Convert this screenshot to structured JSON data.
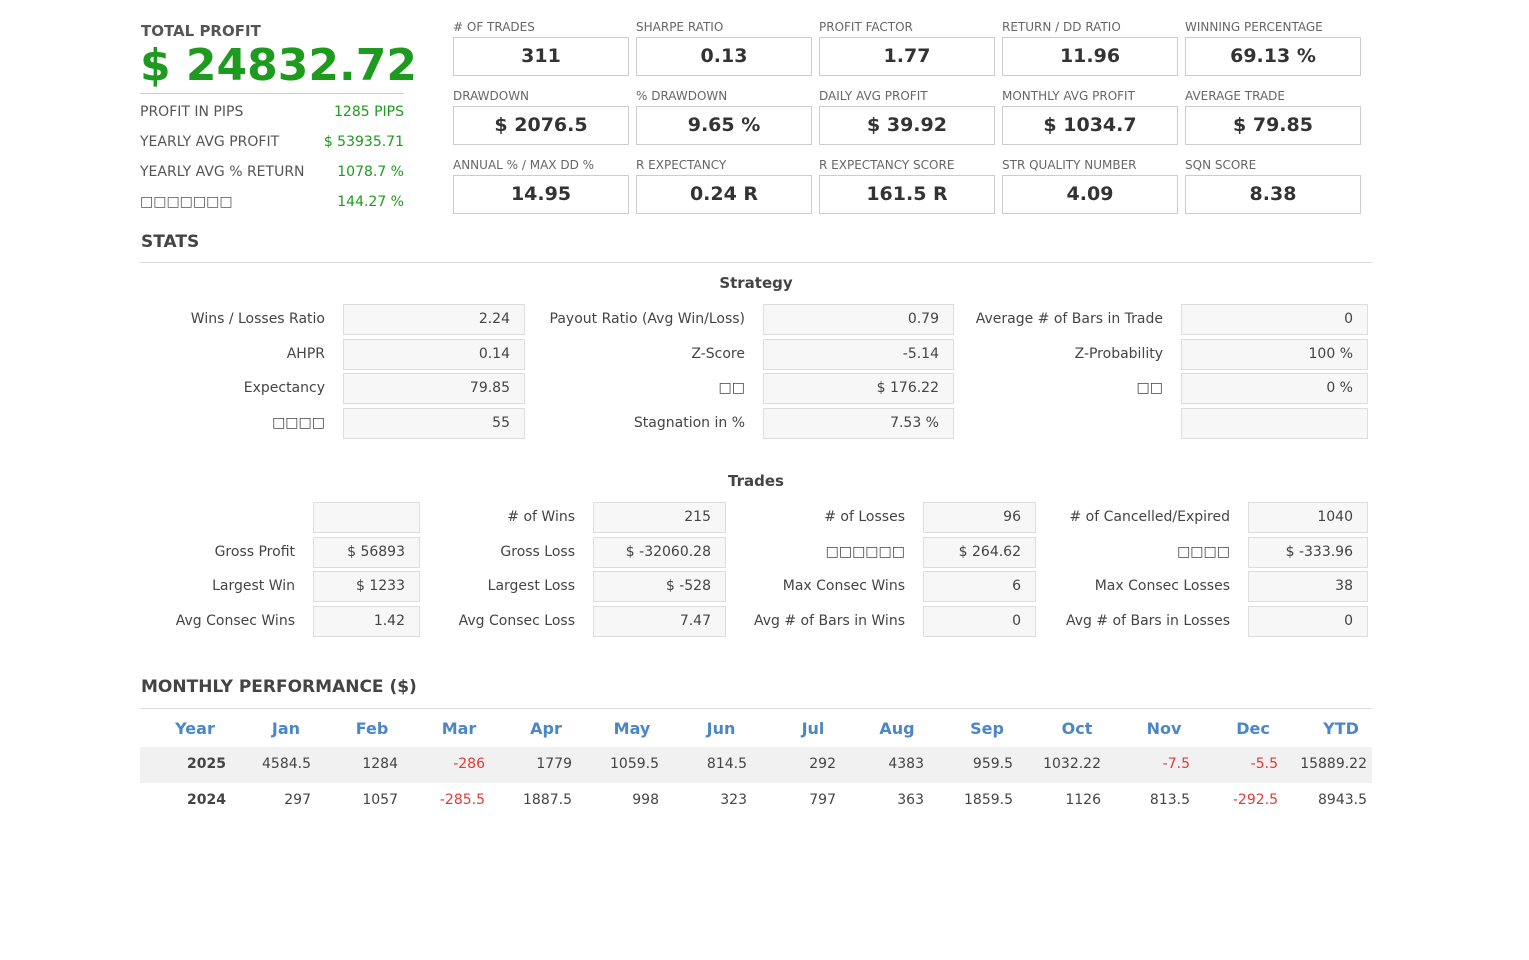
{
  "header": {
    "label": "TOTAL PROFIT",
    "value": "$ 24832.72"
  },
  "summary": [
    {
      "label": "PROFIT IN PIPS",
      "value": "1285 PIPS"
    },
    {
      "label": "YEARLY AVG PROFIT",
      "value": "$ 53935.71"
    },
    {
      "label": "YEARLY AVG % RETURN",
      "value": "1078.7 %"
    },
    {
      "label": "□□□□□□□",
      "value": "144.27 %"
    }
  ],
  "metrics": [
    {
      "label": "# OF TRADES",
      "value": "311"
    },
    {
      "label": "SHARPE RATIO",
      "value": "0.13"
    },
    {
      "label": "PROFIT FACTOR",
      "value": "1.77"
    },
    {
      "label": "RETURN / DD RATIO",
      "value": "11.96"
    },
    {
      "label": "WINNING PERCENTAGE",
      "value": "69.13 %"
    },
    {
      "label": "DRAWDOWN",
      "value": "$ 2076.5"
    },
    {
      "label": "% DRAWDOWN",
      "value": "9.65 %"
    },
    {
      "label": "DAILY AVG PROFIT",
      "value": "$ 39.92"
    },
    {
      "label": "MONTHLY AVG PROFIT",
      "value": "$ 1034.7"
    },
    {
      "label": "AVERAGE TRADE",
      "value": "$ 79.85"
    },
    {
      "label": "ANNUAL % / MAX DD %",
      "value": "14.95"
    },
    {
      "label": "R EXPECTANCY",
      "value": "0.24 R"
    },
    {
      "label": "R EXPECTANCY SCORE",
      "value": "161.5 R"
    },
    {
      "label": "STR QUALITY NUMBER",
      "value": "4.09"
    },
    {
      "label": "SQN SCORE",
      "value": "8.38"
    }
  ],
  "stats_title": "STATS",
  "strategy": {
    "title": "Strategy",
    "rows": [
      [
        {
          "label": "Wins / Losses Ratio",
          "value": "2.24"
        },
        {
          "label": "Payout Ratio (Avg Win/Loss)",
          "value": "0.79"
        },
        {
          "label": "Average # of Bars in Trade",
          "value": "0"
        }
      ],
      [
        {
          "label": "AHPR",
          "value": "0.14"
        },
        {
          "label": "Z-Score",
          "value": "-5.14"
        },
        {
          "label": "Z-Probability",
          "value": "100 %"
        }
      ],
      [
        {
          "label": "Expectancy",
          "value": "79.85"
        },
        {
          "label": "□□",
          "value": "$ 176.22"
        },
        {
          "label": "□□",
          "value": "0 %"
        }
      ],
      [
        {
          "label": "□□□□",
          "value": "55"
        },
        {
          "label": "Stagnation in %",
          "value": "7.53 %"
        },
        null
      ]
    ]
  },
  "trades": {
    "title": "Trades",
    "rows": [
      [
        null,
        {
          "label": "# of Wins",
          "value": "215"
        },
        {
          "label": "# of Losses",
          "value": "96"
        },
        {
          "label": "# of Cancelled/Expired",
          "value": "1040"
        }
      ],
      [
        {
          "label": "Gross Profit",
          "value": "$ 56893"
        },
        {
          "label": "Gross Loss",
          "value": "$ -32060.28"
        },
        {
          "label": "□□□□□□",
          "value": "$ 264.62"
        },
        {
          "label": "□□□□",
          "value": "$ -333.96"
        }
      ],
      [
        {
          "label": "Largest Win",
          "value": "$ 1233"
        },
        {
          "label": "Largest Loss",
          "value": "$ -528"
        },
        {
          "label": "Max Consec Wins",
          "value": "6"
        },
        {
          "label": "Max Consec Losses",
          "value": "38"
        }
      ],
      [
        {
          "label": "Avg Consec Wins",
          "value": "1.42"
        },
        {
          "label": "Avg Consec Loss",
          "value": "7.47"
        },
        {
          "label": "Avg # of Bars in Wins",
          "value": "0"
        },
        {
          "label": "Avg # of Bars in Losses",
          "value": "0"
        }
      ]
    ]
  },
  "monthly": {
    "title": "MONTHLY PERFORMANCE ($)",
    "columns": [
      "Year",
      "Jan",
      "Feb",
      "Mar",
      "Apr",
      "May",
      "Jun",
      "Jul",
      "Aug",
      "Sep",
      "Oct",
      "Nov",
      "Dec",
      "YTD"
    ],
    "rows": [
      [
        "2025",
        "4584.5",
        "1284",
        "-286",
        "1779",
        "1059.5",
        "814.5",
        "292",
        "4383",
        "959.5",
        "1032.22",
        "-7.5",
        "-5.5",
        "15889.22"
      ],
      [
        "2024",
        "297",
        "1057",
        "-285.5",
        "1887.5",
        "998",
        "323",
        "797",
        "363",
        "1859.5",
        "1126",
        "813.5",
        "-292.5",
        "8943.5"
      ]
    ]
  }
}
